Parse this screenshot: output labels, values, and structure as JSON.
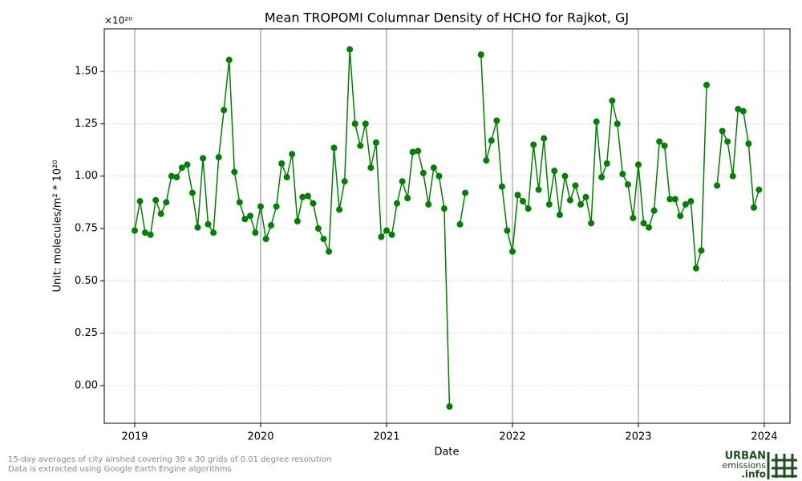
{
  "chart_data": {
    "type": "line",
    "title": "Mean TROPOMI Columnar Density of HCHO for Rajkot, GJ",
    "offset_label": "×10²⁰",
    "x_label": "Date",
    "y_label": "Unit: molecules/m² * 10²⁰",
    "xlim": [
      2018.758,
      2024.204
    ],
    "xticks": [
      2019,
      2020,
      2021,
      2022,
      2023,
      2024
    ],
    "ylim": [
      -0.18,
      1.703
    ],
    "yticks": [
      {
        "value": 0,
        "label": "0.00"
      },
      0.25,
      {
        "value": 0.5,
        "label": "0.50"
      },
      0.75,
      {
        "value": 1,
        "label": "1.00"
      },
      1.25,
      {
        "value": 1.5,
        "label": "1.50"
      }
    ],
    "grid": true,
    "x": [
      2019,
      2019.042,
      2019.083,
      2019.125,
      2019.167,
      2019.208,
      2019.25,
      2019.292,
      2019.333,
      2019.375,
      2019.417,
      2019.458,
      2019.5,
      2019.542,
      2019.583,
      2019.625,
      2019.667,
      2019.708,
      2019.75,
      2019.792,
      2019.833,
      2019.875,
      2019.917,
      2019.958,
      2020,
      2020.042,
      2020.083,
      2020.125,
      2020.167,
      2020.208,
      2020.25,
      2020.292,
      2020.333,
      2020.375,
      2020.417,
      2020.458,
      2020.5,
      2020.542,
      2020.583,
      2020.625,
      2020.667,
      2020.708,
      2020.75,
      2020.792,
      2020.833,
      2020.875,
      2020.917,
      2020.958,
      2021,
      2021.042,
      2021.083,
      2021.125,
      2021.167,
      2021.208,
      2021.25,
      2021.292,
      2021.333,
      2021.375,
      2021.417,
      2021.458,
      2021.5,
      2021.542,
      2021.583,
      2021.625,
      2021.667,
      2021.708,
      2021.75,
      2021.792,
      2021.833,
      2021.875,
      2021.917,
      2021.958,
      2022,
      2022.042,
      2022.083,
      2022.125,
      2022.167,
      2022.208,
      2022.25,
      2022.292,
      2022.333,
      2022.375,
      2022.417,
      2022.458,
      2022.5,
      2022.542,
      2022.583,
      2022.625,
      2022.667,
      2022.708,
      2022.75,
      2022.792,
      2022.833,
      2022.875,
      2022.917,
      2022.958,
      2023,
      2023.042,
      2023.083,
      2023.125,
      2023.167,
      2023.208,
      2023.25,
      2023.292,
      2023.333,
      2023.375,
      2023.417,
      2023.458,
      2023.5,
      2023.542,
      2023.583,
      2023.625,
      2023.667,
      2023.708,
      2023.75,
      2023.792,
      2023.833,
      2023.875,
      2023.917,
      2023.958
    ],
    "series": [
      {
        "color": "#008000",
        "values": [
          0.74,
          0.88,
          0.73,
          0.72,
          0.885,
          0.82,
          0.875,
          1.0,
          0.995,
          1.04,
          1.055,
          0.92,
          0.755,
          1.085,
          0.77,
          0.73,
          1.09,
          1.315,
          1.555,
          1.02,
          0.875,
          0.795,
          0.81,
          0.73,
          0.855,
          0.7,
          0.765,
          0.855,
          1.06,
          0.995,
          1.105,
          0.785,
          0.9,
          0.905,
          0.87,
          0.75,
          0.7,
          0.64,
          1.135,
          0.84,
          0.975,
          1.605,
          1.25,
          1.145,
          1.25,
          1.04,
          1.16,
          0.71,
          0.74,
          0.72,
          0.87,
          0.975,
          0.895,
          1.115,
          1.12,
          1.015,
          0.865,
          1.04,
          1.0,
          0.845,
          -0.1,
          null,
          0.77,
          0.92,
          null,
          null,
          1.58,
          1.075,
          1.17,
          1.265,
          0.95,
          0.74,
          0.64,
          0.91,
          0.88,
          0.845,
          1.15,
          0.935,
          1.18,
          0.865,
          1.025,
          0.815,
          1.0,
          0.885,
          0.955,
          0.865,
          0.9,
          0.775,
          1.26,
          0.995,
          1.06,
          1.36,
          1.25,
          1.01,
          0.96,
          0.8,
          1.055,
          0.775,
          0.755,
          0.835,
          1.165,
          1.145,
          0.89,
          0.89,
          0.81,
          0.865,
          0.88,
          0.56,
          0.645,
          1.435,
          null,
          0.955,
          1.215,
          1.165,
          1.0,
          1.32,
          1.31,
          1.155,
          0.85,
          0.935
        ]
      }
    ]
  },
  "footer": {
    "line1": "15-day averages of city airshed covering 30 x 30 grids of 0.01 degree resolution",
    "line2": "Data is extracted using Google Earth Engine algorithms"
  },
  "logo": {
    "word1": "URBAN",
    "word2": "emissions",
    "word3": ".info"
  }
}
